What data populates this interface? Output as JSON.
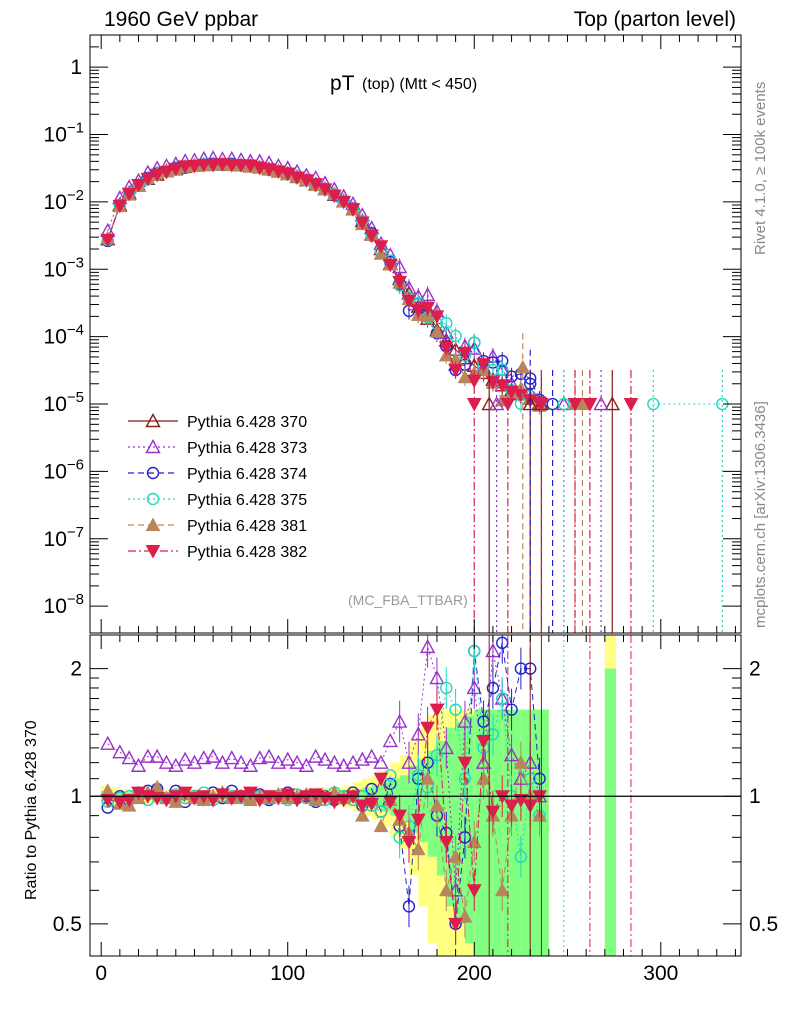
{
  "header": {
    "left": "1960 GeV ppbar",
    "right": "Top (parton level)"
  },
  "side": {
    "rivet": "Rivet 4.1.0, ≥ 100k events",
    "mcplots": "mcplots.cern.ch [arXiv:1306.3436]"
  },
  "colors": {
    "s370": "#8b1a1a",
    "s373": "#9932cc",
    "s374": "#2222cc",
    "s375": "#20d8c0",
    "s381": "#b8865a",
    "s382": "#dc1e4c",
    "band_yellow": "#ffff80",
    "band_green": "#80ff80"
  },
  "chart_data": {
    "type": "scatter",
    "title_main": "pT",
    "title_sub": "(top) (Mtt < 450)",
    "watermark": "(MC_FBA_TTBAR)",
    "xlim": [
      -6,
      343
    ],
    "x_ticks": [
      0,
      100,
      200,
      300
    ],
    "x_tick_labels": [
      "0",
      "100",
      "200",
      "300"
    ],
    "main": {
      "ylog": true,
      "ylim": [
        4e-09,
        3
      ],
      "y_ticks": [
        1,
        0.1,
        0.01,
        0.001,
        0.0001,
        1e-05,
        1e-06,
        1e-07,
        1e-08
      ],
      "y_tick_labels": [
        {
          "base": "1",
          "exp": ""
        },
        {
          "base": "10",
          "exp": "−1"
        },
        {
          "base": "10",
          "exp": "−2"
        },
        {
          "base": "10",
          "exp": "−3"
        },
        {
          "base": "10",
          "exp": "−4"
        },
        {
          "base": "10",
          "exp": "−5"
        },
        {
          "base": "10",
          "exp": "−6"
        },
        {
          "base": "10",
          "exp": "−7"
        },
        {
          "base": "10",
          "exp": "−8"
        }
      ]
    },
    "ratio": {
      "ylabel": "Ratio to Pythia 6.428 370",
      "ylog": true,
      "ylim": [
        0.42,
        2.4
      ],
      "y_ticks": [
        0.5,
        1,
        2
      ],
      "y_tick_labels": [
        "0.5",
        "1",
        "2"
      ]
    },
    "x_centers": [
      3.5,
      10,
      15,
      20,
      25,
      30,
      35,
      40,
      45,
      50,
      55,
      60,
      65,
      70,
      75,
      80,
      85,
      90,
      95,
      100,
      105,
      110,
      115,
      120,
      125,
      130,
      135,
      140,
      145,
      150,
      155,
      160,
      165,
      170,
      175,
      180,
      185,
      190,
      195,
      200,
      205,
      210,
      215,
      220,
      225,
      230,
      235
    ],
    "reference": {
      "name": "Pythia 6.428 370",
      "values": [
        0.0028,
        0.009,
        0.0135,
        0.0175,
        0.022,
        0.0255,
        0.0285,
        0.031,
        0.033,
        0.0345,
        0.0355,
        0.036,
        0.036,
        0.0355,
        0.035,
        0.034,
        0.0325,
        0.0305,
        0.0285,
        0.026,
        0.0235,
        0.021,
        0.0182,
        0.0155,
        0.0128,
        0.0102,
        0.0078,
        0.0052,
        0.0033,
        0.002,
        0.0012,
        0.00072,
        0.00044,
        0.00028,
        0.000185,
        0.000125,
        8.8e-05,
        6.4e-05,
        4.8e-05,
        3.7e-05,
        2.9e-05,
        2.3e-05,
        1.9e-05,
        1.6e-05,
        1.4e-05,
        1.2e-05,
        1.05e-05
      ]
    },
    "series": [
      {
        "name": "Pythia 6.428 370",
        "marker": "triangle-open",
        "line": "solid",
        "color_key": "s370",
        "ratio": [
          1,
          1,
          1,
          1,
          1,
          1,
          1,
          1,
          1,
          1,
          1,
          1,
          1,
          1,
          1,
          1,
          1,
          1,
          1,
          1,
          1,
          1,
          1,
          1,
          1,
          1,
          1,
          1,
          1,
          1,
          1,
          1,
          1,
          1,
          1,
          1,
          1,
          1,
          1,
          1,
          1,
          1,
          1,
          1,
          1,
          1,
          1
        ]
      },
      {
        "name": "Pythia 6.428 373",
        "marker": "triangle-open",
        "line": "dotted",
        "color_key": "s373",
        "ratio": [
          1.33,
          1.27,
          1.23,
          1.18,
          1.24,
          1.24,
          1.2,
          1.18,
          1.22,
          1.2,
          1.23,
          1.24,
          1.2,
          1.23,
          1.2,
          1.18,
          1.23,
          1.24,
          1.2,
          1.22,
          1.2,
          1.18,
          1.24,
          1.22,
          1.2,
          1.18,
          1.2,
          1.22,
          1.24,
          1.2,
          1.35,
          1.5,
          1.2,
          1.4,
          2.25,
          1.9,
          1.3,
          0.6,
          1.5,
          1.8,
          1.2,
          2.2,
          1.7,
          1.25,
          1.1,
          1.2,
          1.0
        ]
      },
      {
        "name": "Pythia 6.428 374",
        "marker": "circle-open",
        "line": "dashed",
        "color_key": "s374",
        "ratio": [
          0.94,
          1.0,
          0.98,
          1.0,
          1.03,
          1.04,
          0.99,
          1.03,
          0.97,
          1.0,
          0.98,
          1.02,
          0.99,
          1.03,
          1.0,
          0.99,
          1.01,
          0.98,
          1.0,
          1.02,
          0.99,
          1.0,
          0.97,
          1.0,
          0.98,
          1.0,
          1.02,
          0.95,
          1.04,
          0.92,
          1.07,
          0.85,
          0.55,
          1.1,
          1.2,
          0.9,
          0.82,
          0.5,
          0.8,
          2.2,
          1.5,
          1.8,
          2.3,
          1.6,
          2.0,
          2.0,
          1.1
        ]
      },
      {
        "name": "Pythia 6.428 375",
        "marker": "circle-open",
        "line": "dotted",
        "color_key": "s375",
        "ratio": [
          0.97,
          0.99,
          1.0,
          1.02,
          0.98,
          1.0,
          0.99,
          1.01,
          0.99,
          1.0,
          1.02,
          0.98,
          1.0,
          1.0,
          0.99,
          1.01,
          1.0,
          0.99,
          1.0,
          0.98,
          1.01,
          0.99,
          1.0,
          0.98,
          1.02,
          1.0,
          0.98,
          1.0,
          0.95,
          0.92,
          1.12,
          0.8,
          0.85,
          1.12,
          1.05,
          1.25,
          1.8,
          1.6,
          1.1,
          2.2,
          1.3,
          1.4,
          1.7,
          1.0,
          0.72,
          1.1,
          0.9
        ]
      },
      {
        "name": "Pythia 6.428 381",
        "marker": "triangle-filled",
        "line": "dashed",
        "color_key": "s381",
        "ratio": [
          1.03,
          0.96,
          0.95,
          0.99,
          1.02,
          1.05,
          0.99,
          0.97,
          1.01,
          0.99,
          0.98,
          1.0,
          1.02,
          0.99,
          1.0,
          0.98,
          1.0,
          0.99,
          1.01,
          0.99,
          1.0,
          1.01,
          0.98,
          1.0,
          1.02,
          0.99,
          1.0,
          0.9,
          0.98,
          0.85,
          0.98,
          0.88,
          0.82,
          0.75,
          1.1,
          0.95,
          0.6,
          0.72,
          0.52,
          0.78,
          1.1,
          0.9,
          0.6,
          0.9,
          1.2,
          1.0,
          0.9
        ]
      },
      {
        "name": "Pythia 6.428 382",
        "marker": "triangle-down-filled",
        "line": "dashdot",
        "color_key": "s382",
        "ratio": [
          0.98,
          0.97,
          0.98,
          1.02,
          1.0,
          0.99,
          0.98,
          1.0,
          1.02,
          0.99,
          1.0,
          0.98,
          1.01,
          0.99,
          1.0,
          1.02,
          0.98,
          1.0,
          0.99,
          1.01,
          0.98,
          1.0,
          1.01,
          0.99,
          0.97,
          0.98,
          1.0,
          0.95,
          0.96,
          1.1,
          0.97,
          0.9,
          0.78,
          0.88,
          1.45,
          1.6,
          0.78,
          0.5,
          1.2,
          0.6,
          1.35,
          0.92,
          1.0,
          0.95,
          0.98,
          0.95,
          1.0
        ]
      }
    ],
    "tail_points": [
      {
        "series": 0,
        "x": 208,
        "y": 1e-05
      },
      {
        "series": 0,
        "x": 230,
        "y": 1e-05
      },
      {
        "series": 0,
        "x": 236,
        "y": 1e-05
      },
      {
        "series": 0,
        "x": 274,
        "y": 1e-05
      },
      {
        "series": 1,
        "x": 212,
        "y": 1e-05
      },
      {
        "series": 1,
        "x": 248,
        "y": 1e-05
      },
      {
        "series": 1,
        "x": 268,
        "y": 1e-05
      },
      {
        "series": 2,
        "x": 230,
        "y": 2e-05
      },
      {
        "series": 2,
        "x": 242,
        "y": 1e-05
      },
      {
        "series": 3,
        "x": 248,
        "y": 1e-05
      },
      {
        "series": 3,
        "x": 296,
        "y": 1e-05
      },
      {
        "series": 3,
        "x": 333,
        "y": 1e-05
      },
      {
        "series": 4,
        "x": 226,
        "y": 3.5e-05
      },
      {
        "series": 4,
        "x": 254,
        "y": 1e-05
      },
      {
        "series": 4,
        "x": 258,
        "y": 1e-05
      },
      {
        "series": 5,
        "x": 200,
        "y": 1e-05
      },
      {
        "series": 5,
        "x": 218,
        "y": 1e-05
      },
      {
        "series": 5,
        "x": 236,
        "y": 1e-05
      },
      {
        "series": 5,
        "x": 254,
        "y": 1e-05
      },
      {
        "series": 5,
        "x": 262,
        "y": 1e-05
      },
      {
        "series": 5,
        "x": 284,
        "y": 1e-05
      }
    ],
    "uncertainty_bands": {
      "edges": [
        0,
        5,
        10,
        15,
        20,
        25,
        30,
        35,
        40,
        45,
        50,
        55,
        60,
        65,
        70,
        75,
        80,
        85,
        90,
        95,
        100,
        105,
        110,
        115,
        120,
        125,
        130,
        135,
        140,
        145,
        150,
        155,
        160,
        165,
        170,
        175,
        180,
        185,
        190,
        195,
        200,
        205,
        210,
        215,
        220,
        225,
        230,
        235,
        240
      ],
      "yellow_halfwidth": [
        0.06,
        0.05,
        0.04,
        0.04,
        0.04,
        0.04,
        0.04,
        0.04,
        0.04,
        0.04,
        0.04,
        0.04,
        0.04,
        0.04,
        0.04,
        0.04,
        0.04,
        0.04,
        0.04,
        0.04,
        0.04,
        0.04,
        0.04,
        0.05,
        0.05,
        0.05,
        0.06,
        0.08,
        0.1,
        0.12,
        0.15,
        0.2,
        0.25,
        0.35,
        0.45,
        0.55,
        0.6,
        0.6,
        0.6,
        0.6,
        0.6,
        0.6,
        0.6,
        0.6,
        0.6,
        0.6,
        0.6,
        0.6
      ],
      "green_halfwidth": [
        0.03,
        0.02,
        0.02,
        0.02,
        0.02,
        0.02,
        0.02,
        0.02,
        0.02,
        0.02,
        0.02,
        0.02,
        0.02,
        0.02,
        0.02,
        0.02,
        0.02,
        0.02,
        0.02,
        0.02,
        0.02,
        0.02,
        0.02,
        0.02,
        0.02,
        0.03,
        0.03,
        0.04,
        0.05,
        0.06,
        0.08,
        0.1,
        0.12,
        0.18,
        0.22,
        0.28,
        0.35,
        0.45,
        0.5,
        0.55,
        0.6,
        0.6,
        0.6,
        0.6,
        0.6,
        0.6,
        0.6,
        0.6
      ],
      "isolated": [
        {
          "x0": 270,
          "x1": 276,
          "lo": 0.42,
          "hi": 2.4,
          "inner_hi": 2.0
        }
      ]
    }
  }
}
